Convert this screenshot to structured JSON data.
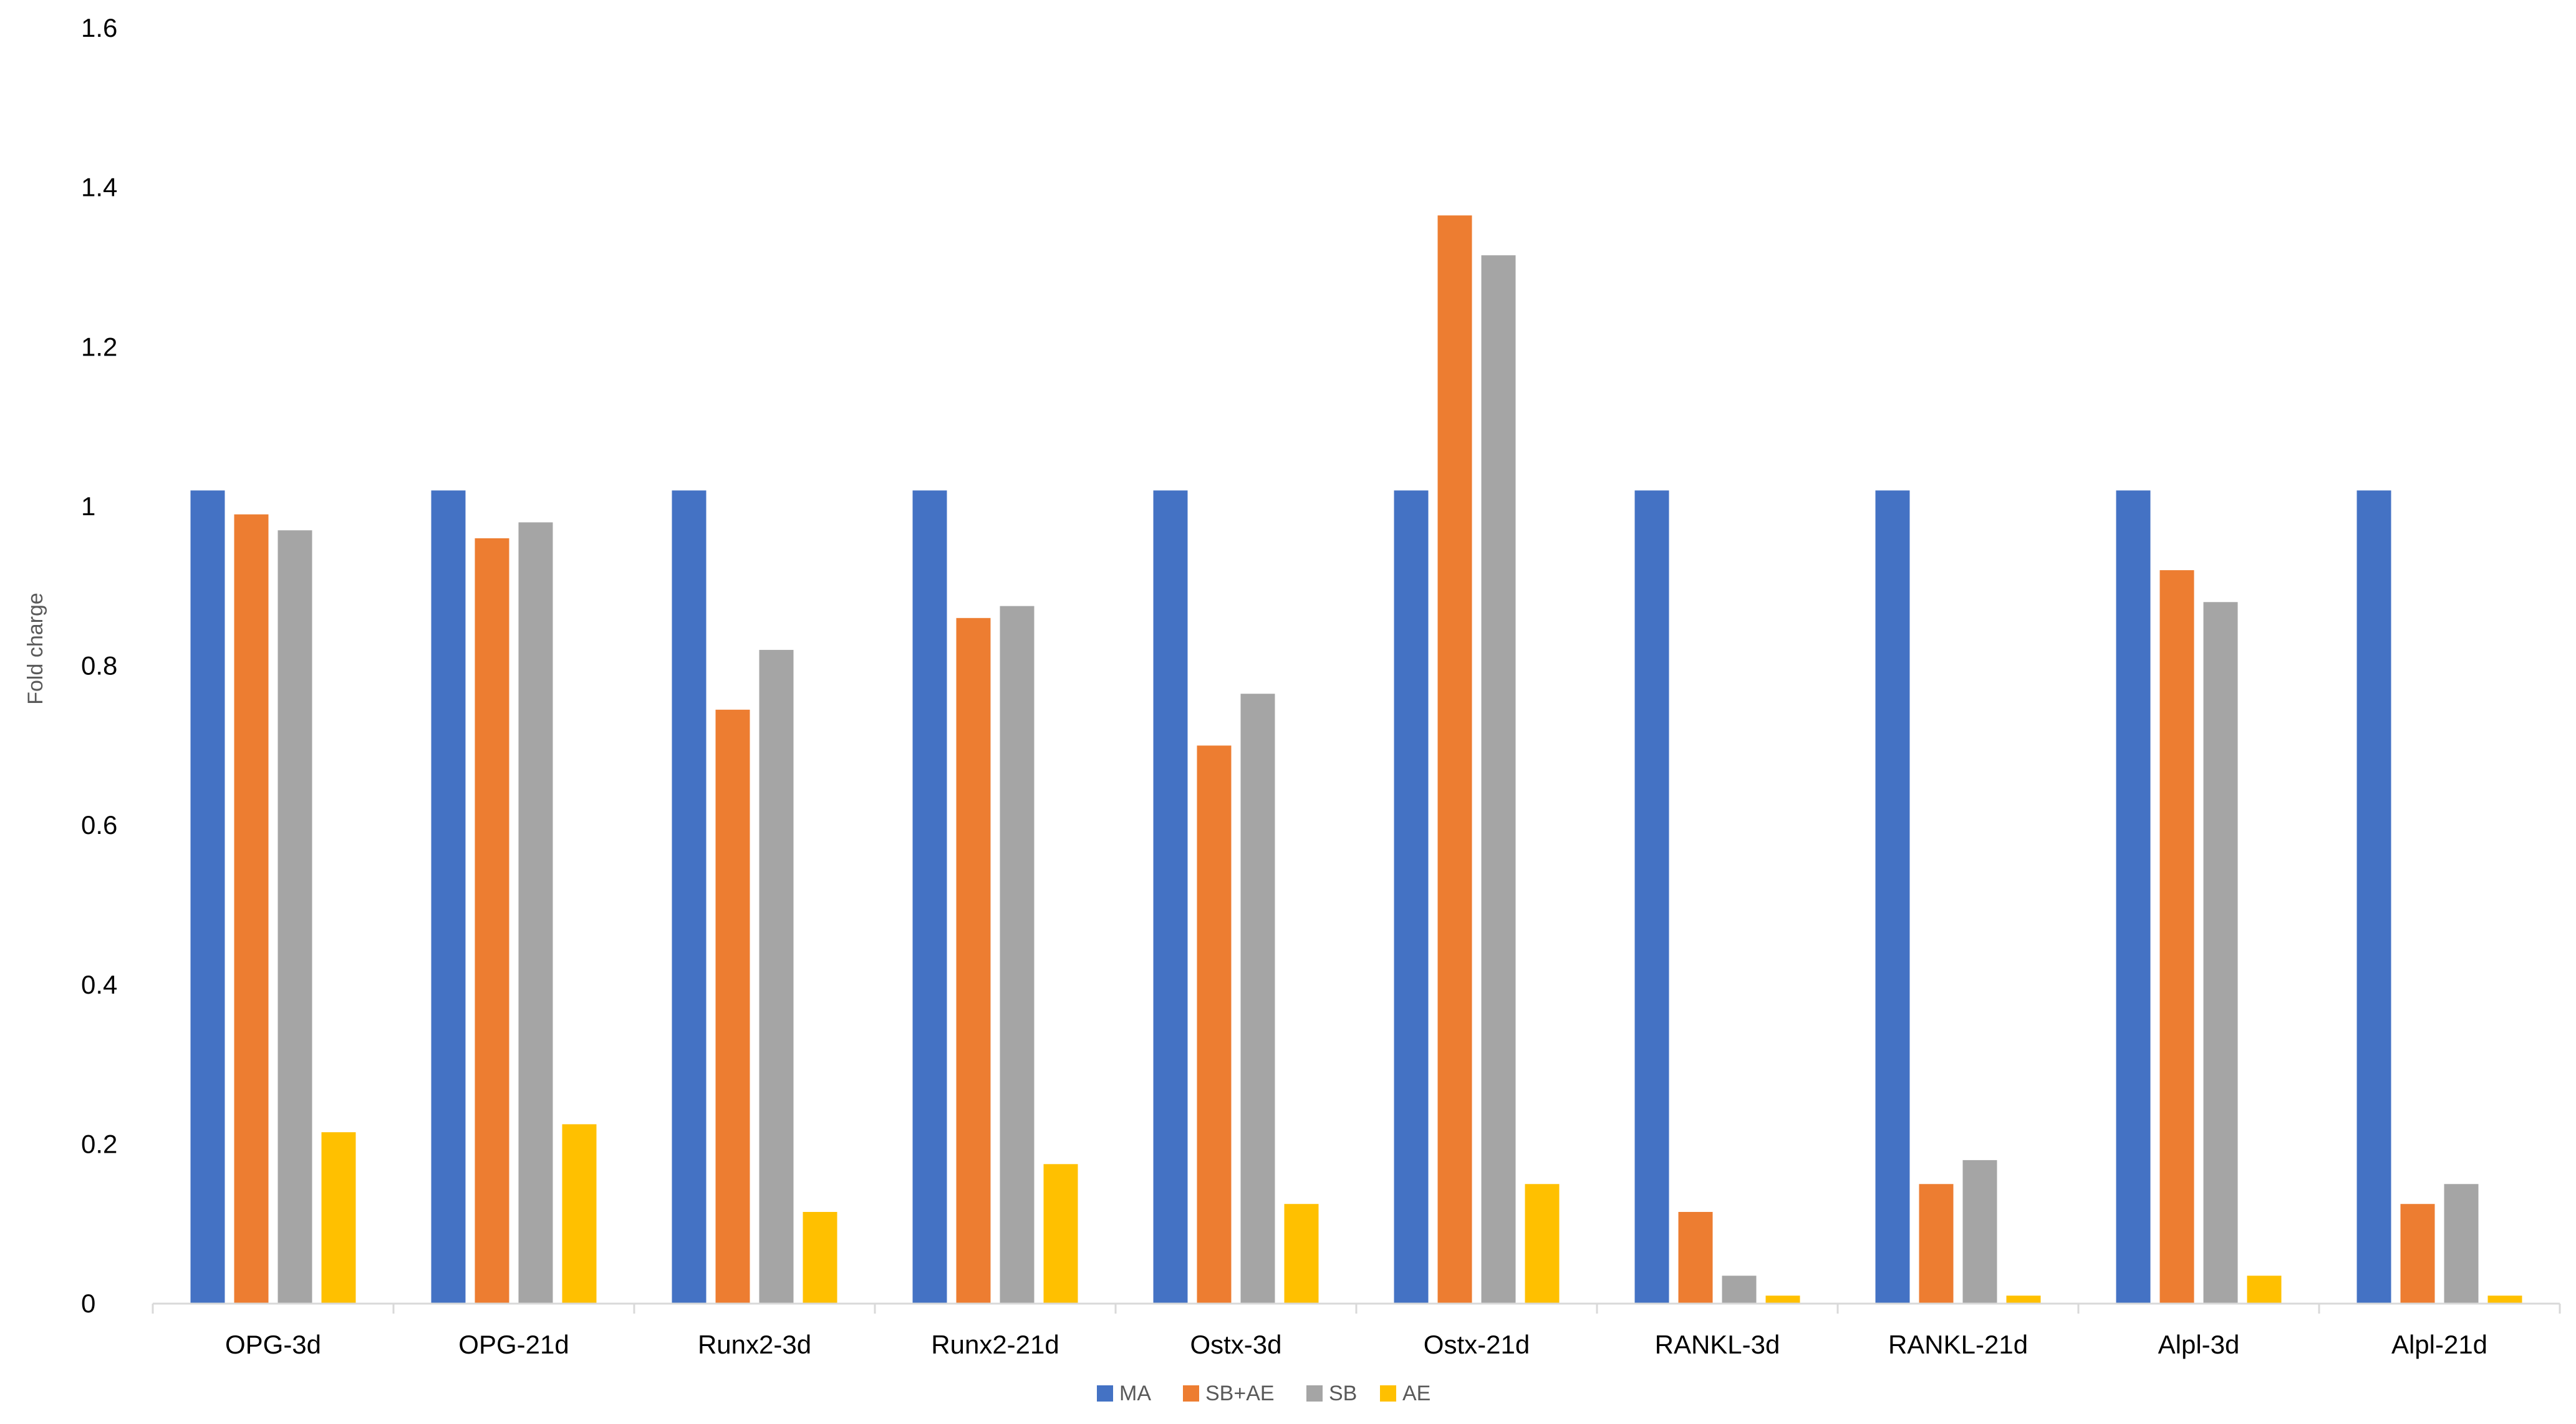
{
  "chart_data": {
    "type": "bar",
    "title": "",
    "xlabel": "",
    "ylabel": "Fold charge",
    "ylim": [
      0,
      1.6
    ],
    "yticks": [
      "0",
      "0.2",
      "0.4",
      "0.6",
      "0.8",
      "1",
      "1.2",
      "1.4",
      "1.6"
    ],
    "grid": false,
    "legend_position": "bottom",
    "categories": [
      "OPG-3d",
      "OPG-21d",
      "Runx2-3d",
      "Runx2-21d",
      "Ostx-3d",
      "Ostx-21d",
      "RANKL-3d",
      "RANKL-21d",
      "Alpl-3d",
      "Alpl-21d"
    ],
    "series": [
      {
        "name": "MA",
        "color": "#4472C4",
        "values": [
          1.02,
          1.02,
          1.02,
          1.02,
          1.02,
          1.02,
          1.02,
          1.02,
          1.02,
          1.02
        ]
      },
      {
        "name": "SB+AE",
        "color": "#ED7D31",
        "values": [
          0.99,
          0.96,
          0.745,
          0.86,
          0.7,
          1.365,
          0.115,
          0.15,
          0.92,
          0.125
        ]
      },
      {
        "name": "SB",
        "color": "#A5A5A5",
        "values": [
          0.97,
          0.98,
          0.82,
          0.875,
          0.765,
          1.315,
          0.035,
          0.18,
          0.88,
          0.15
        ]
      },
      {
        "name": "AE",
        "color": "#FFC000",
        "values": [
          0.215,
          0.225,
          0.115,
          0.175,
          0.125,
          0.15,
          0.01,
          0.01,
          0.035,
          0.01
        ]
      }
    ]
  }
}
